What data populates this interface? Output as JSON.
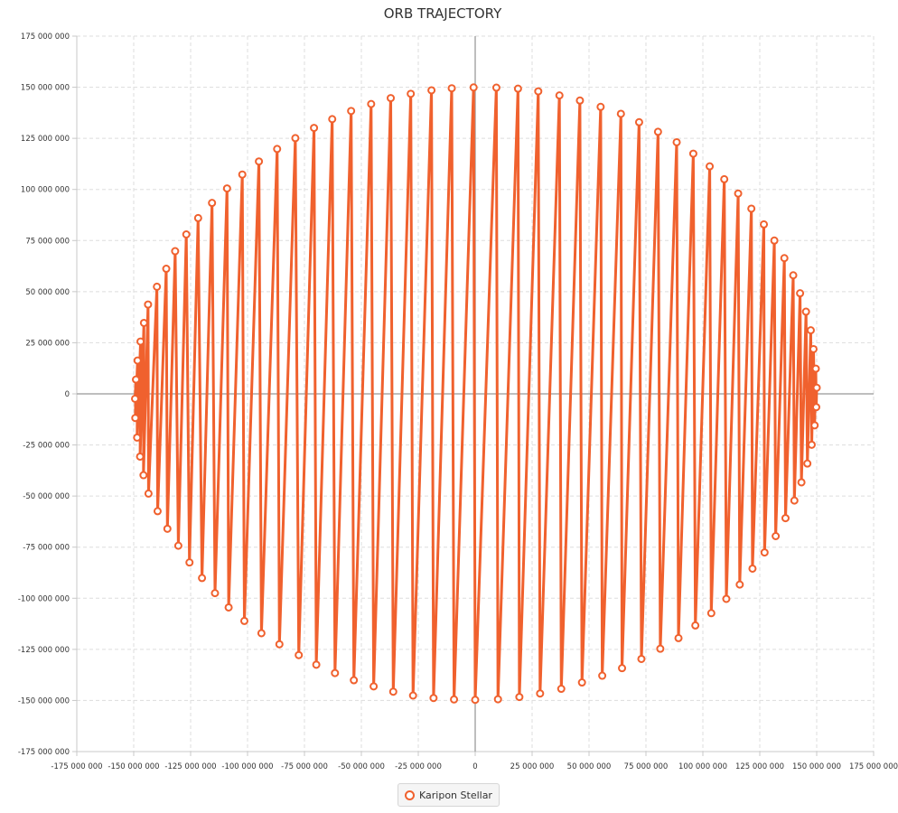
{
  "chart_data": {
    "type": "line",
    "title": "ORB TRAJECTORY",
    "xlabel": "",
    "ylabel": "",
    "xlim": [
      -175000000,
      175000000
    ],
    "ylim": [
      -175000000,
      175000000
    ],
    "x_ticks": [
      -175000000,
      -150000000,
      -125000000,
      -100000000,
      -75000000,
      -50000000,
      -25000000,
      0,
      25000000,
      50000000,
      75000000,
      100000000,
      125000000,
      150000000,
      175000000
    ],
    "y_ticks": [
      -175000000,
      -150000000,
      -125000000,
      -100000000,
      -75000000,
      -50000000,
      -25000000,
      0,
      25000000,
      50000000,
      75000000,
      100000000,
      125000000,
      150000000,
      175000000
    ],
    "grid": true,
    "legend_position": "bottom-center",
    "series": [
      {
        "name": "Karipon Stellar",
        "color": "#f0612e",
        "points": [
          [
            -149400000,
            -2400000
          ],
          [
            -149000000,
            7000000
          ],
          [
            -149300000,
            -11800000
          ],
          [
            -148300000,
            16300000
          ],
          [
            -148500000,
            -21400000
          ],
          [
            -147000000,
            25600000
          ],
          [
            -147200000,
            -30700000
          ],
          [
            -145500000,
            34700000
          ],
          [
            -145700000,
            -39800000
          ],
          [
            -143700000,
            43700000
          ],
          [
            -143500000,
            -48800000
          ],
          [
            -139800000,
            52400000
          ],
          [
            -139500000,
            -57400000
          ],
          [
            -135700000,
            61200000
          ],
          [
            -135200000,
            -66000000
          ],
          [
            -131800000,
            69800000
          ],
          [
            -130400000,
            -74300000
          ],
          [
            -126900000,
            78000000
          ],
          [
            -125500000,
            -82500000
          ],
          [
            -121700000,
            86000000
          ],
          [
            -120000000,
            -90100000
          ],
          [
            -115600000,
            93400000
          ],
          [
            -114300000,
            -97500000
          ],
          [
            -109000000,
            100500000
          ],
          [
            -108300000,
            -104500000
          ],
          [
            -102300000,
            107300000
          ],
          [
            -101400000,
            -111100000
          ],
          [
            -95000000,
            113700000
          ],
          [
            -93900000,
            -117100000
          ],
          [
            -87000000,
            119800000
          ],
          [
            -86000000,
            -122500000
          ],
          [
            -79000000,
            125100000
          ],
          [
            -77500000,
            -127800000
          ],
          [
            -70800000,
            130100000
          ],
          [
            -69800000,
            -132500000
          ],
          [
            -62800000,
            134400000
          ],
          [
            -61600000,
            -136600000
          ],
          [
            -54500000,
            138400000
          ],
          [
            -53300000,
            -140100000
          ],
          [
            -45700000,
            141800000
          ],
          [
            -44600000,
            -143100000
          ],
          [
            -37100000,
            144700000
          ],
          [
            -36000000,
            -145700000
          ],
          [
            -28300000,
            146800000
          ],
          [
            -27300000,
            -147600000
          ],
          [
            -19200000,
            148500000
          ],
          [
            -18300000,
            -148800000
          ],
          [
            -10300000,
            149500000
          ],
          [
            -9300000,
            -149500000
          ],
          [
            -700000,
            149900000
          ],
          [
            0,
            -149700000
          ],
          [
            9300000,
            149800000
          ],
          [
            10000000,
            -149400000
          ],
          [
            18800000,
            149300000
          ],
          [
            19400000,
            -148300000
          ],
          [
            27700000,
            148000000
          ],
          [
            28500000,
            -146600000
          ],
          [
            37000000,
            146000000
          ],
          [
            37800000,
            -144300000
          ],
          [
            46000000,
            143500000
          ],
          [
            46900000,
            -141200000
          ],
          [
            55100000,
            140400000
          ],
          [
            55800000,
            -137900000
          ],
          [
            64000000,
            137000000
          ],
          [
            64500000,
            -134200000
          ],
          [
            72000000,
            132900000
          ],
          [
            73000000,
            -129700000
          ],
          [
            80300000,
            128200000
          ],
          [
            81300000,
            -124700000
          ],
          [
            88500000,
            123100000
          ],
          [
            89300000,
            -119500000
          ],
          [
            95800000,
            117500000
          ],
          [
            96700000,
            -113300000
          ],
          [
            103000000,
            111300000
          ],
          [
            103700000,
            -107300000
          ],
          [
            109400000,
            105000000
          ],
          [
            110300000,
            -100300000
          ],
          [
            115500000,
            98000000
          ],
          [
            116200000,
            -93300000
          ],
          [
            121300000,
            90600000
          ],
          [
            121800000,
            -85500000
          ],
          [
            126800000,
            82900000
          ],
          [
            127100000,
            -77600000
          ],
          [
            131400000,
            75000000
          ],
          [
            132000000,
            -69600000
          ],
          [
            135800000,
            66400000
          ],
          [
            136300000,
            -60800000
          ],
          [
            139700000,
            58000000
          ],
          [
            140200000,
            -52200000
          ],
          [
            142700000,
            49200000
          ],
          [
            143300000,
            -43300000
          ],
          [
            145300000,
            40200000
          ],
          [
            145900000,
            -34100000
          ],
          [
            147400000,
            31100000
          ],
          [
            147800000,
            -24900000
          ],
          [
            148600000,
            21900000
          ],
          [
            149100000,
            -15400000
          ],
          [
            149600000,
            12300000
          ],
          [
            149800000,
            -6500000
          ],
          [
            150000000,
            3000000
          ]
        ]
      }
    ]
  }
}
